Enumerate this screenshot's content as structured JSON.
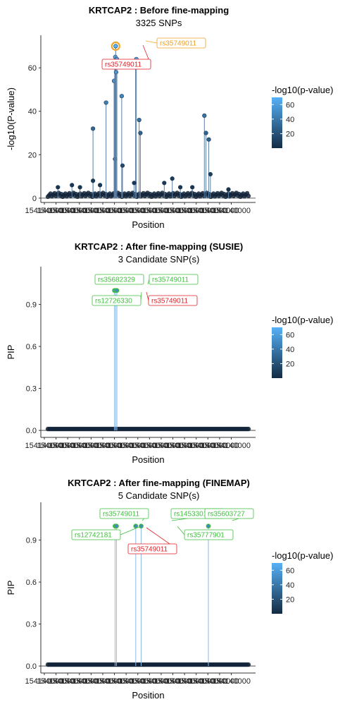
{
  "chart_data": [
    {
      "type": "scatter",
      "title": "KRTCAP2 : Before fine-mapping",
      "subtitle": "3325 SNPs",
      "xlabel": "Position",
      "ylabel": "-log10(P-value)",
      "ylim": [
        -2,
        75
      ],
      "yticks": [
        0,
        20,
        40,
        60
      ],
      "x_tick_labels": [
        "154140000",
        "154140000",
        "154140000",
        "154140000",
        "154140000",
        "154140000",
        "154140000",
        "154140000",
        "154140000",
        "154140000",
        "154140000",
        "154140000",
        "154140000",
        "154140000",
        "154140000",
        "154140000",
        "154140000"
      ],
      "legend": {
        "title": "-log10(p-value)",
        "ticks": [
          20,
          40,
          60
        ],
        "range": [
          0,
          70
        ],
        "colors": [
          "#132B43",
          "#56B1F7"
        ],
        "position": "right"
      },
      "points": [
        {
          "x": 0.225,
          "y": 32
        },
        {
          "x": 0.29,
          "y": 44
        },
        {
          "x": 0.335,
          "y": 18
        },
        {
          "x": 0.33,
          "y": 54
        },
        {
          "x": 0.333,
          "y": 62
        },
        {
          "x": 0.336,
          "y": 65
        },
        {
          "x": 0.338,
          "y": 70
        },
        {
          "x": 0.34,
          "y": 58
        },
        {
          "x": 0.344,
          "y": 64
        },
        {
          "x": 0.368,
          "y": 47
        },
        {
          "x": 0.372,
          "y": 15
        },
        {
          "x": 0.437,
          "y": 63
        },
        {
          "x": 0.441,
          "y": 64
        },
        {
          "x": 0.455,
          "y": 36
        },
        {
          "x": 0.461,
          "y": 30
        },
        {
          "x": 0.78,
          "y": 38
        },
        {
          "x": 0.788,
          "y": 30
        },
        {
          "x": 0.802,
          "y": 27
        },
        {
          "x": 0.225,
          "y": 8
        },
        {
          "x": 0.43,
          "y": 7
        },
        {
          "x": 0.81,
          "y": 11
        },
        {
          "x": 0.62,
          "y": 9
        },
        {
          "x": 0.66,
          "y": 5
        },
        {
          "x": 0.26,
          "y": 6
        },
        {
          "x": 0.12,
          "y": 6
        },
        {
          "x": 0.05,
          "y": 5
        },
        {
          "x": 0.58,
          "y": 7
        },
        {
          "x": 0.72,
          "y": 5
        },
        {
          "x": 0.9,
          "y": 4
        },
        {
          "x": 0.16,
          "y": 5
        }
      ],
      "labels": [
        {
          "text": "rs35749011",
          "color": "#f0a020",
          "target_x": 0.338,
          "target_y": 70
        },
        {
          "text": "rs35749011",
          "color": "#e21f26",
          "target_x": 0.338,
          "target_y": 70
        }
      ],
      "highlight": [
        {
          "x": 0.338,
          "y": 70,
          "color": "#f0a020"
        }
      ]
    },
    {
      "type": "scatter",
      "title": "KRTCAP2 : After fine-mapping (SUSIE)",
      "subtitle": "3 Candidate SNP(s)",
      "xlabel": "Position",
      "ylabel": "PIP",
      "ylim": [
        -0.05,
        1.17
      ],
      "yticks": [
        0.0,
        0.3,
        0.6,
        0.9
      ],
      "x_tick_labels": [
        "154140000",
        "154140000",
        "154140000",
        "154140000",
        "154140000",
        "154140000",
        "154140000",
        "154140000",
        "154140000",
        "154140000",
        "154140000",
        "154140000",
        "154140000",
        "154140000",
        "154140000",
        "154140000",
        "154140000"
      ],
      "legend": {
        "title": "-log10(p-value)",
        "ticks": [
          20,
          40,
          60
        ],
        "range": [
          0,
          70
        ],
        "colors": [
          "#132B43",
          "#56B1F7"
        ],
        "position": "right"
      },
      "points": [
        {
          "x": 0.332,
          "y": 1.0
        },
        {
          "x": 0.338,
          "y": 1.0
        },
        {
          "x": 0.344,
          "y": 1.0
        }
      ],
      "labels": [
        {
          "text": "rs35682329",
          "color": "#3fbf3f"
        },
        {
          "text": "rs35749011",
          "color": "#3fbf3f"
        },
        {
          "text": "rs12726330",
          "color": "#3fbf3f"
        },
        {
          "text": "rs35749011",
          "color": "#e21f26"
        }
      ]
    },
    {
      "type": "scatter",
      "title": "KRTCAP2 : After fine-mapping (FINEMAP)",
      "subtitle": "5 Candidate SNP(s)",
      "xlabel": "Position",
      "ylabel": "PIP",
      "ylim": [
        -0.05,
        1.17
      ],
      "yticks": [
        0.0,
        0.3,
        0.6,
        0.9
      ],
      "x_tick_labels": [
        "154140000",
        "154140000",
        "154140000",
        "154140000",
        "154140000",
        "154140000",
        "154140000",
        "154140000",
        "154140000",
        "154140000",
        "154140000",
        "154140000",
        "154140000",
        "154140000",
        "154140000",
        "154140000",
        "154140000"
      ],
      "legend": {
        "title": "-log10(p-value)",
        "ticks": [
          20,
          40,
          60
        ],
        "range": [
          0,
          70
        ],
        "colors": [
          "#132B43",
          "#56B1F7"
        ],
        "position": "right"
      },
      "points": [
        {
          "x": 0.335,
          "y": 1.0
        },
        {
          "x": 0.342,
          "y": 1.0
        },
        {
          "x": 0.438,
          "y": 1.0
        },
        {
          "x": 0.465,
          "y": 1.0
        },
        {
          "x": 0.8,
          "y": 1.0
        }
      ],
      "labels": [
        {
          "text": "rs35749011",
          "color": "#3fbf3f"
        },
        {
          "text": "rs145330152",
          "color": "#3fbf3f"
        },
        {
          "text": "rs35603727",
          "color": "#3fbf3f"
        },
        {
          "text": "rs12742181",
          "color": "#3fbf3f"
        },
        {
          "text": "rs35777901",
          "color": "#3fbf3f"
        },
        {
          "text": "rs35749011",
          "color": "#e21f26"
        }
      ]
    }
  ]
}
